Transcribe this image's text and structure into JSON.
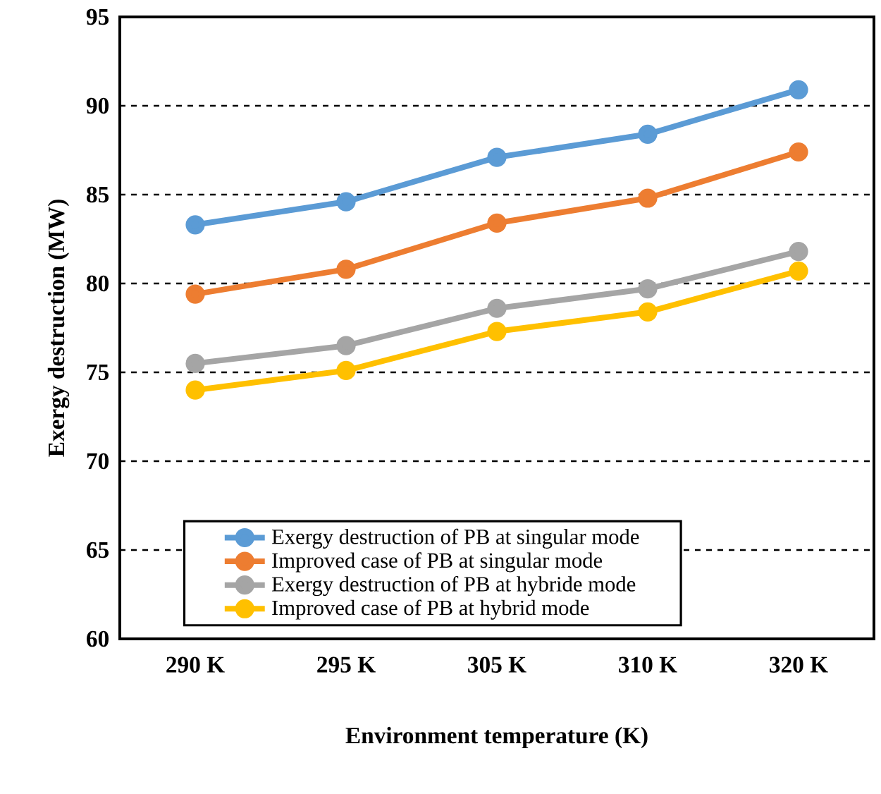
{
  "chart_data": {
    "type": "line",
    "xlabel": "Environment temperature (K)",
    "ylabel": "Exergy destruction (MW)",
    "categories": [
      "290 K",
      "295 K",
      "305 K",
      "310 K",
      "320 K"
    ],
    "series": [
      {
        "name": "Exergy destruction of PB at singular mode",
        "color": "#5b9bd5",
        "values": [
          83.3,
          84.6,
          87.1,
          88.4,
          90.9
        ]
      },
      {
        "name": "Improved case of PB at singular mode",
        "color": "#ed7d31",
        "values": [
          79.4,
          80.8,
          83.4,
          84.8,
          87.4
        ]
      },
      {
        "name": "Exergy destruction of PB at hybride mode",
        "color": "#a5a5a5",
        "values": [
          75.5,
          76.5,
          78.6,
          79.7,
          81.8
        ]
      },
      {
        "name": "Improved case of PB at hybrid mode",
        "color": "#ffc000",
        "values": [
          74.0,
          75.1,
          77.3,
          78.4,
          80.7
        ]
      }
    ],
    "ylim": [
      60,
      95
    ],
    "yticks": [
      60,
      65,
      70,
      75,
      80,
      85,
      90,
      95
    ],
    "grid": "y",
    "legend": "bottom",
    "marker": "circle",
    "line_style": "solid"
  }
}
